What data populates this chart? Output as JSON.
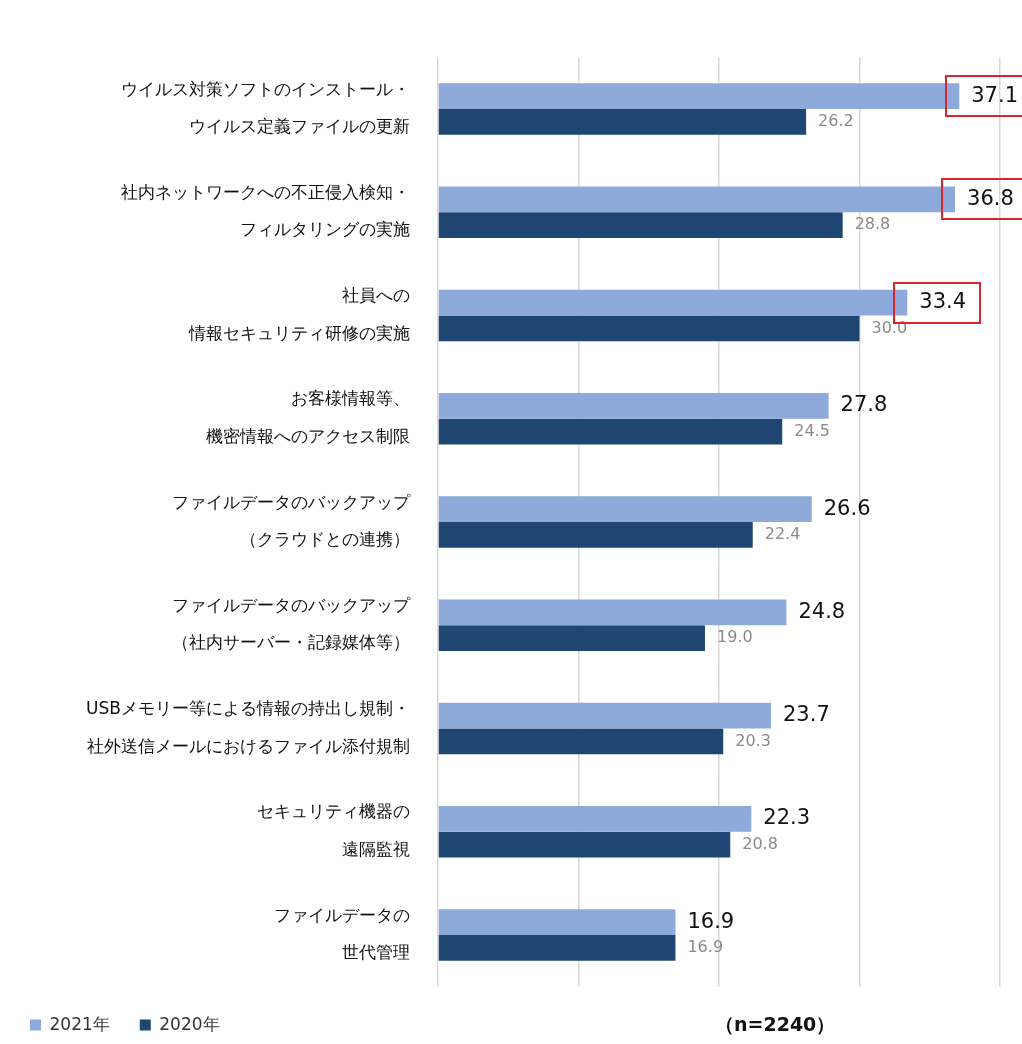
{
  "chart_data": {
    "type": "bar",
    "orientation": "horizontal",
    "categories": [
      "ウイルス対策ソフトのインストール・ウイルス定義ファイルの更新",
      "社内ネットワークへの不正侵入検知・フィルタリングの実施",
      "社員への情報セキュリティ研修の実施",
      "お客様情報等、機密情報へのアクセス制限",
      "ファイルデータのバックアップ（クラウドとの連携）",
      "ファイルデータのバックアップ（社内サーバー・記録媒体等）",
      "USBメモリー等による情報の持出し規制・社外送信メールにおけるファイル添付規制",
      "セキュリティ機器の遠隔監視",
      "ファイルデータの世代管理"
    ],
    "series": [
      {
        "name": "2021年",
        "color": "#8eaadb",
        "values": [
          37.1,
          36.8,
          33.4,
          27.8,
          26.6,
          24.8,
          23.7,
          22.3,
          16.9
        ],
        "value_labels": [
          "37.1",
          "36.8",
          "33.4",
          "27.8",
          "26.6",
          "24.8",
          "23.7",
          "22.3",
          "16.9"
        ]
      },
      {
        "name": "2020年",
        "color": "#1f4672",
        "values": [
          26.2,
          28.8,
          30.0,
          24.5,
          22.4,
          19.0,
          20.3,
          20.8,
          16.9
        ],
        "value_labels": [
          "26.2",
          "28.8",
          "30.0",
          "24.5",
          "22.4",
          "19.0",
          "20.3",
          "20.8",
          "16.9"
        ]
      }
    ],
    "xlim": [
      0,
      40
    ],
    "xticks": [
      {
        "value": 0,
        "label": null
      },
      {
        "value": 10,
        "label": null
      },
      {
        "value": 20,
        "label": null
      },
      {
        "value": 30,
        "label": null
      },
      {
        "value": 40,
        "label": null
      }
    ],
    "tick_labels": "y",
    "grid": "x",
    "legend": "bottom",
    "annotations": [
      "（n=2240）"
    ]
  }
}
